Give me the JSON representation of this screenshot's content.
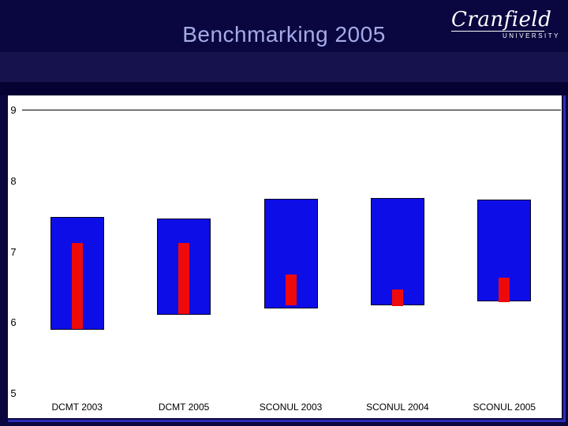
{
  "slide": {
    "title": "Benchmarking 2005",
    "logo": {
      "name": "Cranfield",
      "subtitle": "UNIVERSITY"
    }
  },
  "colors": {
    "slide_background": "#0a0740",
    "header_band": "#16124e",
    "title_text": "#a5aae8",
    "logo_text": "#ffffff",
    "panel_background": "#ffffff",
    "outer_bar_blue": "#0d0de8",
    "inner_bar_red": "#ee0a0a",
    "frame_blue": "#2e2eb8",
    "axis_text": "#000000"
  },
  "chart_data": {
    "type": "bar",
    "subtype": "floating-range-bars",
    "title": "",
    "xlabel": "",
    "ylabel": "",
    "categories": [
      "DCMT 2003",
      "DCMT 2005",
      "SCONUL 2003",
      "SCONUL 2004",
      "SCONUL 2005"
    ],
    "series": [
      {
        "name": "outer-range",
        "color": "#0d0de8",
        "ranges": [
          [
            5.9,
            7.5
          ],
          [
            6.11,
            7.47
          ],
          [
            6.2,
            7.75
          ],
          [
            6.25,
            7.76
          ],
          [
            6.3,
            7.74
          ]
        ]
      },
      {
        "name": "inner-range",
        "color": "#ee0a0a",
        "ranges": [
          [
            5.91,
            7.13
          ],
          [
            6.12,
            7.13
          ],
          [
            6.25,
            6.68
          ],
          [
            6.24,
            6.47
          ],
          [
            6.29,
            6.64
          ]
        ]
      }
    ],
    "y_ticks": [
      9,
      8,
      7,
      6,
      5
    ],
    "ylim": [
      4.65,
      9.2
    ],
    "gridline_at": 9,
    "grid": "single-line-at-9",
    "legend": "none"
  }
}
